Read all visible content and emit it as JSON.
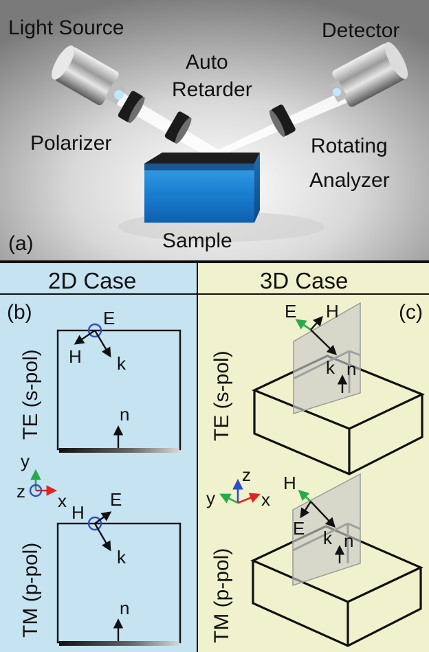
{
  "panel_a": {
    "tag": "(a)",
    "light_source": "Light Source",
    "detector": "Detector",
    "auto_retarder_l1": "Auto",
    "auto_retarder_l2": "Retarder",
    "polarizer": "Polarizer",
    "rotating_analyzer_l1": "Rotating",
    "rotating_analyzer_l2": "Analyzer",
    "sample": "Sample"
  },
  "panel_b": {
    "header": "2D Case",
    "tag": "(b)",
    "te_label": "TE (s-pol)",
    "tm_label": "TM (p-pol)",
    "te": {
      "e": "E",
      "h": "H",
      "k": "k",
      "n": "n"
    },
    "tm": {
      "e": "E",
      "h": "H",
      "k": "k",
      "n": "n"
    },
    "axes": {
      "y": "y",
      "z": "z",
      "x": "x"
    }
  },
  "panel_c": {
    "header": "3D Case",
    "tag": "(c)",
    "te_label": "TE (s-pol)",
    "tm_label": "TM (p-pol)",
    "te": {
      "e": "E",
      "h": "H",
      "k": "k",
      "n": "n"
    },
    "tm": {
      "e": "E",
      "h": "H",
      "k": "k",
      "n": "n"
    },
    "axes": {
      "z": "z",
      "y": "y",
      "x": "x"
    }
  },
  "colors": {
    "panel_b_bg": "#c5e3f1",
    "panel_c_bg": "#eff2cc",
    "sample_blue": "#1e88d6",
    "axis_x_red": "#e02424",
    "axis_y_green": "#2aa84a",
    "axis_z_blue": "#2c4fc4"
  }
}
